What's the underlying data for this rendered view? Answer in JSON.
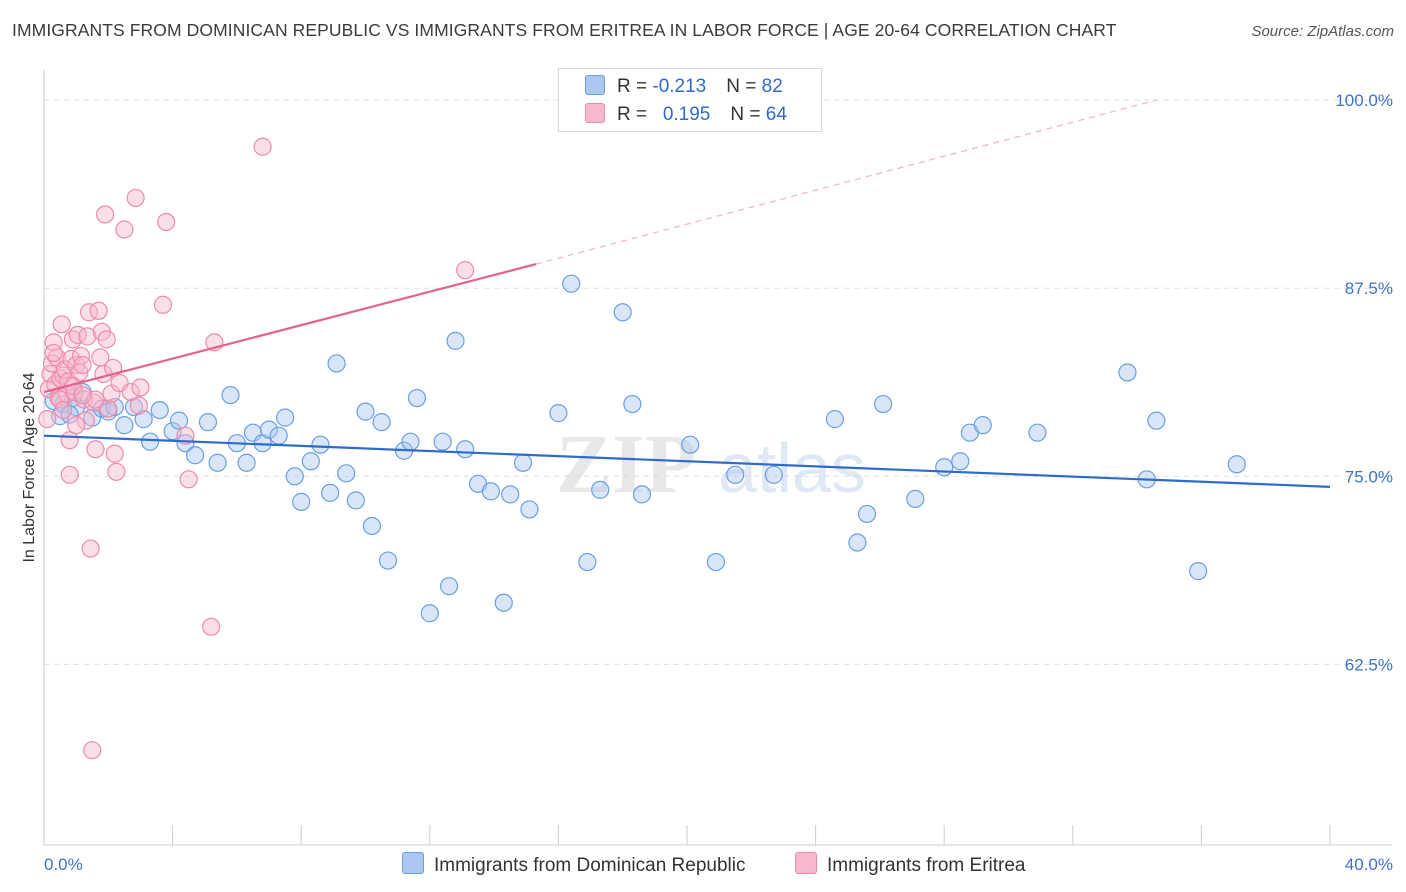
{
  "title": "IMMIGRANTS FROM DOMINICAN REPUBLIC VS IMMIGRANTS FROM ERITREA IN LABOR FORCE | AGE 20-64 CORRELATION CHART",
  "source": "Source: ZipAtlas.com",
  "legend": {
    "rows": [
      {
        "r_label": "R = ",
        "r_value": "-0.213",
        "n_label": "N = ",
        "n_value": "82"
      },
      {
        "r_label": "R = ",
        "r_value": "0.195",
        "n_label": "N = ",
        "n_value": "64"
      }
    ]
  },
  "bottom_legend": [
    "Immigrants from Dominican Republic",
    "Immigrants from Eritrea"
  ],
  "watermark": {
    "zip": "ZIP",
    "atlas": "atlas"
  },
  "chart_data": {
    "type": "scatter",
    "ylabel": "In Labor Force | Age 20-64",
    "xlim": [
      0,
      40
    ],
    "ylim": [
      50.5,
      102
    ],
    "x_tick_labels": [
      {
        "value": 0,
        "label": "0.0%"
      },
      {
        "value": 40,
        "label": "40.0%"
      }
    ],
    "y_tick_labels": [
      {
        "value": 100,
        "label": "100.0%"
      },
      {
        "value": 87.5,
        "label": "87.5%"
      },
      {
        "value": 75,
        "label": "75.0%"
      },
      {
        "value": 62.5,
        "label": "62.5%"
      }
    ],
    "x_minor_ticks": [
      0,
      4,
      8,
      12,
      16,
      20,
      24,
      28,
      32,
      36,
      40
    ],
    "grid": "horizontal-dashed",
    "colors": {
      "dominican_fill": "#aac8f0",
      "dominican_stroke": "#6a9fe0",
      "dominican_line": "#2f6bc9",
      "eritrea_fill": "#f7b8cc",
      "eritrea_stroke": "#ee8aab",
      "eritrea_line": "#e3628e"
    },
    "series": [
      {
        "name": "Immigrants from Dominican Republic",
        "trend": {
          "x": [
            0,
            40
          ],
          "y": [
            77.7,
            74.3
          ]
        },
        "points": [
          [
            0.3,
            80.0
          ],
          [
            0.5,
            79.0
          ],
          [
            0.6,
            79.8
          ],
          [
            0.9,
            80.2
          ],
          [
            1.2,
            80.6
          ],
          [
            1.5,
            78.9
          ],
          [
            1.8,
            79.5
          ],
          [
            2.0,
            79.3
          ],
          [
            2.5,
            78.4
          ],
          [
            2.8,
            79.6
          ],
          [
            3.1,
            78.8
          ],
          [
            3.3,
            77.3
          ],
          [
            3.6,
            79.4
          ],
          [
            4.0,
            78.0
          ],
          [
            4.2,
            78.7
          ],
          [
            4.4,
            77.2
          ],
          [
            4.7,
            76.4
          ],
          [
            5.1,
            78.6
          ],
          [
            5.4,
            75.9
          ],
          [
            5.8,
            80.4
          ],
          [
            6.0,
            77.2
          ],
          [
            6.3,
            75.9
          ],
          [
            6.5,
            77.9
          ],
          [
            6.8,
            77.2
          ],
          [
            7.0,
            78.1
          ],
          [
            7.3,
            77.7
          ],
          [
            7.5,
            78.9
          ],
          [
            7.8,
            75.0
          ],
          [
            8.0,
            73.3
          ],
          [
            8.3,
            76.0
          ],
          [
            8.6,
            77.1
          ],
          [
            8.9,
            73.9
          ],
          [
            9.1,
            82.5
          ],
          [
            9.4,
            75.2
          ],
          [
            9.7,
            73.4
          ],
          [
            10.0,
            79.3
          ],
          [
            10.2,
            71.7
          ],
          [
            10.5,
            78.6
          ],
          [
            10.7,
            69.4
          ],
          [
            11.2,
            76.7
          ],
          [
            11.4,
            77.3
          ],
          [
            11.6,
            80.2
          ],
          [
            12.0,
            65.9
          ],
          [
            12.4,
            77.3
          ],
          [
            12.6,
            67.7
          ],
          [
            12.8,
            84.0
          ],
          [
            13.1,
            76.8
          ],
          [
            13.5,
            74.5
          ],
          [
            13.9,
            74.0
          ],
          [
            14.3,
            66.6
          ],
          [
            14.5,
            73.8
          ],
          [
            14.9,
            75.9
          ],
          [
            15.1,
            72.8
          ],
          [
            16.0,
            79.2
          ],
          [
            16.4,
            87.8
          ],
          [
            16.9,
            69.3
          ],
          [
            17.3,
            74.1
          ],
          [
            18.0,
            85.9
          ],
          [
            18.3,
            79.8
          ],
          [
            18.6,
            73.8
          ],
          [
            20.1,
            77.1
          ],
          [
            20.9,
            69.3
          ],
          [
            21.5,
            75.1
          ],
          [
            22.7,
            75.1
          ],
          [
            24.6,
            78.8
          ],
          [
            25.3,
            70.6
          ],
          [
            25.6,
            72.5
          ],
          [
            26.1,
            79.8
          ],
          [
            27.1,
            73.5
          ],
          [
            28.0,
            75.6
          ],
          [
            28.5,
            76.0
          ],
          [
            28.8,
            77.9
          ],
          [
            29.2,
            78.4
          ],
          [
            30.9,
            77.9
          ],
          [
            33.7,
            81.9
          ],
          [
            34.3,
            74.8
          ],
          [
            34.6,
            78.7
          ],
          [
            35.9,
            68.7
          ],
          [
            37.1,
            75.8
          ],
          [
            1.0,
            79.6
          ],
          [
            2.2,
            79.6
          ],
          [
            0.8,
            79.1
          ]
        ]
      },
      {
        "name": "Immigrants from Eritrea",
        "trend": {
          "x": [
            0,
            15.3
          ],
          "y": [
            80.6,
            89.1
          ]
        },
        "trend_extension": {
          "x": [
            15.3,
            34.6
          ],
          "y": [
            89.1,
            100
          ]
        },
        "points": [
          [
            0.1,
            78.8
          ],
          [
            0.15,
            80.8
          ],
          [
            0.2,
            81.8
          ],
          [
            0.25,
            82.5
          ],
          [
            0.3,
            83.9
          ],
          [
            0.35,
            81.1
          ],
          [
            0.4,
            82.9
          ],
          [
            0.45,
            80.2
          ],
          [
            0.5,
            81.5
          ],
          [
            0.55,
            85.1
          ],
          [
            0.6,
            81.7
          ],
          [
            0.65,
            82.1
          ],
          [
            0.7,
            80.5
          ],
          [
            0.75,
            81.3
          ],
          [
            0.8,
            77.4
          ],
          [
            0.8,
            75.1
          ],
          [
            0.85,
            82.8
          ],
          [
            0.9,
            84.1
          ],
          [
            0.95,
            80.6
          ],
          [
            1.0,
            82.4
          ],
          [
            1.05,
            84.4
          ],
          [
            1.1,
            81.9
          ],
          [
            1.15,
            83.0
          ],
          [
            1.2,
            82.4
          ],
          [
            1.25,
            80.1
          ],
          [
            1.3,
            78.7
          ],
          [
            1.35,
            84.3
          ],
          [
            1.4,
            85.9
          ],
          [
            1.45,
            70.2
          ],
          [
            1.5,
            56.8
          ],
          [
            1.55,
            79.9
          ],
          [
            1.6,
            76.8
          ],
          [
            1.7,
            86.0
          ],
          [
            1.75,
            82.9
          ],
          [
            1.8,
            84.6
          ],
          [
            1.85,
            81.8
          ],
          [
            1.9,
            92.4
          ],
          [
            1.95,
            84.1
          ],
          [
            2.0,
            79.5
          ],
          [
            2.1,
            80.5
          ],
          [
            2.15,
            82.2
          ],
          [
            2.2,
            76.5
          ],
          [
            2.25,
            75.3
          ],
          [
            2.35,
            81.2
          ],
          [
            2.5,
            91.4
          ],
          [
            2.7,
            80.6
          ],
          [
            2.85,
            93.5
          ],
          [
            2.95,
            79.7
          ],
          [
            3.0,
            80.9
          ],
          [
            3.7,
            86.4
          ],
          [
            3.8,
            91.9
          ],
          [
            4.4,
            77.7
          ],
          [
            4.5,
            74.8
          ],
          [
            5.2,
            65.0
          ],
          [
            5.3,
            83.9
          ],
          [
            6.8,
            96.9
          ],
          [
            13.1,
            88.7
          ],
          [
            0.5,
            80.1
          ],
          [
            0.6,
            79.4
          ],
          [
            1.0,
            78.4
          ],
          [
            0.3,
            83.2
          ],
          [
            1.6,
            80.1
          ],
          [
            0.9,
            81.0
          ],
          [
            1.2,
            80.4
          ]
        ]
      }
    ]
  }
}
